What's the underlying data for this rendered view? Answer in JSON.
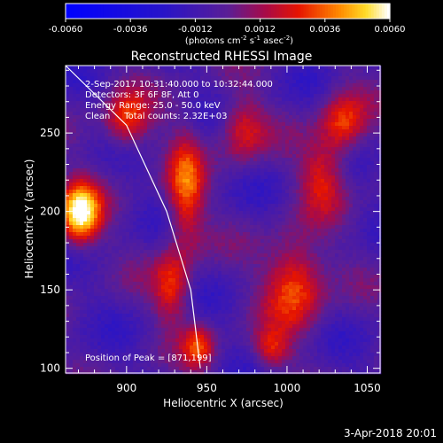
{
  "chart_data": {
    "type": "heatmap",
    "title": "Reconstructed RHESSI Image",
    "xlabel": "Heliocentric X (arcsec)",
    "ylabel": "Heliocentric Y (arcsec)",
    "xlim": [
      862,
      1058
    ],
    "ylim": [
      97,
      293
    ],
    "x_ticks": [
      900,
      950,
      1000,
      1050
    ],
    "y_ticks": [
      100,
      150,
      200,
      250
    ],
    "colorbar": {
      "min": -0.006,
      "max": 0.006,
      "ticks": [
        "-0.0060",
        "-0.0036",
        "-0.0012",
        "0.0012",
        "0.0036",
        "0.0060"
      ],
      "unit_label_parts": [
        "(photons cm",
        "-2",
        " s",
        "-1",
        " asec",
        "-2",
        ")"
      ]
    },
    "annotations": [
      "2-Sep-2017 10:31:40.000 to 10:32:44.000",
      "Detectors: 3F 6F 8F, Att 0",
      "Energy Range: 25.0 - 50.0 keV",
      "Clean     Total counts: 2.32E+03"
    ],
    "peak_label": "Position of Peak = [871,199]",
    "peak": {
      "x": 871,
      "y": 199
    },
    "sources": [
      {
        "x": 871,
        "y": 199,
        "sx": 9,
        "sy": 14,
        "amp": 1.0
      },
      {
        "x": 900,
        "y": 258,
        "sx": 10,
        "sy": 13,
        "amp": 0.55
      },
      {
        "x": 937,
        "y": 212,
        "sx": 8,
        "sy": 26,
        "amp": 0.6
      },
      {
        "x": 928,
        "y": 152,
        "sx": 8,
        "sy": 16,
        "amp": 0.5
      },
      {
        "x": 945,
        "y": 114,
        "sx": 7,
        "sy": 10,
        "amp": 0.5
      },
      {
        "x": 972,
        "y": 252,
        "sx": 10,
        "sy": 15,
        "amp": 0.45
      },
      {
        "x": 1005,
        "y": 155,
        "sx": 13,
        "sy": 20,
        "amp": 0.65
      },
      {
        "x": 1022,
        "y": 223,
        "sx": 10,
        "sy": 16,
        "amp": 0.45
      },
      {
        "x": 1035,
        "y": 256,
        "sx": 10,
        "sy": 14,
        "amp": 0.55
      },
      {
        "x": 990,
        "y": 112,
        "sx": 8,
        "sy": 9,
        "amp": 0.45
      }
    ],
    "limb_curve": [
      [
        862,
        293
      ],
      [
        900,
        255
      ],
      [
        925,
        200
      ],
      [
        940,
        150
      ],
      [
        946,
        100
      ]
    ],
    "footer_date": "3-Apr-2018 20:01"
  }
}
